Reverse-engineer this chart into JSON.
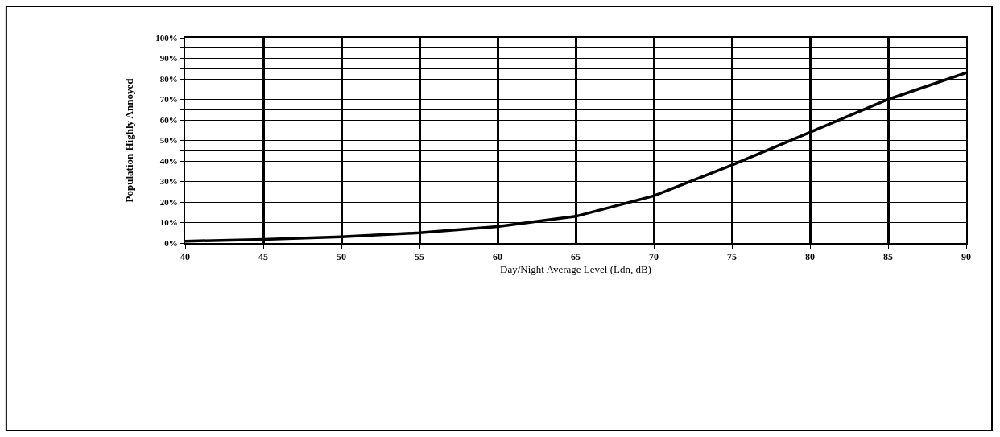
{
  "chart_data": {
    "type": "line",
    "xlabel": "Day/Night Average Level (Ldn, dB)",
    "ylabel": "Population Highly Annoyed",
    "x": [
      40,
      45,
      50,
      55,
      60,
      65,
      70,
      75,
      80,
      85,
      90
    ],
    "series": [
      {
        "color": "#000000",
        "values": [
          0.9,
          1.8,
          3,
          5,
          8,
          13,
          23,
          38,
          54,
          70,
          83
        ]
      }
    ],
    "xlim": [
      40,
      90
    ],
    "xticks": [
      40,
      45,
      50,
      55,
      60,
      65,
      70,
      75,
      80,
      85,
      90
    ],
    "ylim": [
      0,
      100
    ],
    "yticks": [
      {
        "value": 0,
        "label": "0%"
      },
      {
        "value": 5,
        "label": null
      },
      {
        "value": 10,
        "label": "10%"
      },
      {
        "value": 15,
        "label": null
      },
      {
        "value": 20,
        "label": "20%"
      },
      {
        "value": 25,
        "label": null
      },
      {
        "value": 30,
        "label": "30%"
      },
      {
        "value": 35,
        "label": null
      },
      {
        "value": 40,
        "label": "40%"
      },
      {
        "value": 45,
        "label": null
      },
      {
        "value": 50,
        "label": "50%"
      },
      {
        "value": 55,
        "label": null
      },
      {
        "value": 60,
        "label": "60%"
      },
      {
        "value": 65,
        "label": null
      },
      {
        "value": 70,
        "label": "70%"
      },
      {
        "value": 75,
        "label": null
      },
      {
        "value": 80,
        "label": "80%"
      },
      {
        "value": 85,
        "label": null
      },
      {
        "value": 90,
        "label": "90%"
      },
      {
        "value": 95,
        "label": null
      },
      {
        "value": 100,
        "label": "100%"
      }
    ],
    "grid": true,
    "marker": "none",
    "line_style": "solid"
  }
}
